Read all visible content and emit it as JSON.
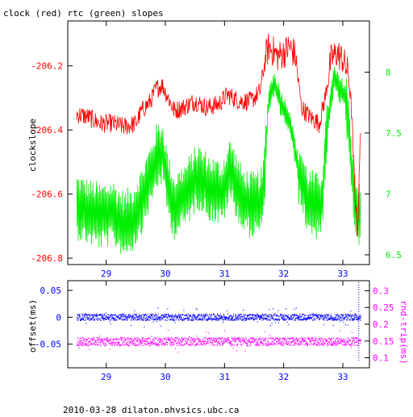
{
  "title": "clock (red) rtc (green) slopes",
  "footer": "2010-03-28 dilaton.physics.ubc.ca",
  "colors": {
    "red": "#ff0000",
    "green": "#00ee00",
    "blue": "#0000ff",
    "magenta": "#ff00ff",
    "axis": "#000000"
  },
  "chart_data": [
    {
      "type": "line",
      "title": "clock (red) rtc (green) slopes",
      "xlim": [
        28.35,
        33.45
      ],
      "x_ticks": [
        "29",
        "30",
        "31",
        "32",
        "33"
      ],
      "x_tick_values": [
        29,
        30,
        31,
        32,
        33
      ],
      "ylabel": "clockslope",
      "ylim": [
        -206.82,
        -206.06
      ],
      "y_ticks": [
        "-206.2",
        "-206.4",
        "-206.6",
        "-206.8"
      ],
      "y_tick_values": [
        -206.2,
        -206.4,
        -206.6,
        -206.8
      ],
      "y2lim": [
        6.42,
        8.42
      ],
      "y2_ticks": [
        "8",
        "7.5",
        "7",
        "6.5"
      ],
      "y2_tick_values": [
        8,
        7.5,
        7,
        6.5
      ],
      "grid": false,
      "series": [
        {
          "axis": "left",
          "x": [
            28.5,
            28.7,
            28.9,
            29.1,
            29.3,
            29.5,
            29.6,
            29.75,
            29.85,
            29.95,
            30.05,
            30.15,
            30.3,
            30.5,
            30.7,
            30.9,
            31.05,
            31.25,
            31.45,
            31.6,
            31.7,
            31.75,
            31.8,
            31.9,
            32.0,
            32.1,
            32.2,
            32.3,
            32.45,
            32.6,
            32.7,
            32.8,
            32.9,
            33.0,
            33.1,
            33.15,
            33.2,
            33.25,
            33.3
          ],
          "values": [
            -206.35,
            -206.36,
            -206.38,
            -206.38,
            -206.39,
            -206.38,
            -206.34,
            -206.31,
            -206.27,
            -206.26,
            -206.3,
            -206.34,
            -206.33,
            -206.31,
            -206.33,
            -206.32,
            -206.29,
            -206.31,
            -206.31,
            -206.28,
            -206.17,
            -206.14,
            -206.15,
            -206.17,
            -206.16,
            -206.14,
            -206.17,
            -206.33,
            -206.36,
            -206.38,
            -206.3,
            -206.18,
            -206.16,
            -206.18,
            -206.23,
            -206.35,
            -206.58,
            -206.72,
            -206.4
          ]
        },
        {
          "axis": "right",
          "x": [
            28.5,
            28.7,
            28.9,
            29.1,
            29.3,
            29.45,
            29.6,
            29.75,
            29.85,
            29.95,
            30.05,
            30.15,
            30.35,
            30.55,
            30.75,
            30.95,
            31.1,
            31.3,
            31.5,
            31.65,
            31.75,
            31.85,
            31.95,
            32.1,
            32.25,
            32.4,
            32.55,
            32.65,
            32.75,
            32.85,
            32.95,
            33.05,
            33.15,
            33.2,
            33.25,
            33.3
          ],
          "values": [
            6.9,
            6.85,
            6.82,
            6.85,
            6.75,
            6.8,
            6.95,
            7.15,
            7.3,
            7.35,
            7.05,
            6.9,
            7.0,
            7.15,
            7.05,
            7.0,
            7.2,
            6.95,
            6.9,
            6.95,
            7.8,
            7.9,
            7.75,
            7.6,
            7.2,
            6.95,
            6.9,
            6.95,
            7.6,
            7.95,
            7.85,
            7.8,
            7.2,
            7.0,
            6.85,
            6.8
          ]
        }
      ]
    },
    {
      "type": "scatter",
      "xlim": [
        28.35,
        33.45
      ],
      "x_ticks": [
        "29",
        "30",
        "31",
        "32",
        "33"
      ],
      "x_tick_values": [
        29,
        30,
        31,
        32,
        33
      ],
      "ylabel": "offset(ms)",
      "ylim": [
        -0.094,
        0.068
      ],
      "y_ticks": [
        "0.05",
        "0",
        "-0.05"
      ],
      "y_tick_values": [
        0.05,
        0,
        -0.05
      ],
      "y2label": "rnd-trip(ms)",
      "y2lim": [
        0.07,
        0.33
      ],
      "y2_ticks": [
        "0.3",
        "0.25",
        "0.2",
        "0.15",
        "0.1"
      ],
      "y2_tick_values": [
        0.3,
        0.25,
        0.2,
        0.15,
        0.1
      ],
      "grid": false,
      "series": [
        {
          "axis": "left",
          "x_range": [
            28.5,
            33.3
          ],
          "center": 0.0,
          "spread": 0.006
        },
        {
          "axis": "right",
          "x_range": [
            28.5,
            33.3
          ],
          "center": 0.148,
          "spread": 0.012
        }
      ]
    }
  ]
}
